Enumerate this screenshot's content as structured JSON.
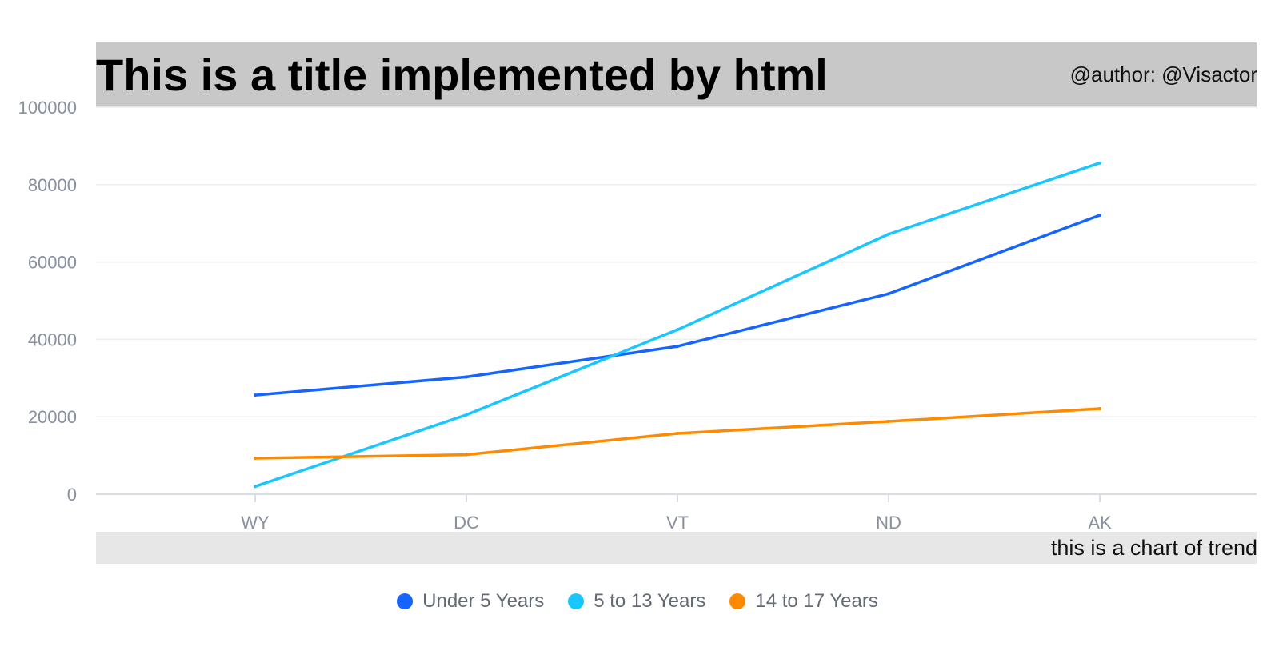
{
  "header": {
    "title": "This is a title implemented by html",
    "author": "@author: @Visactor"
  },
  "footer": {
    "caption": "this is a chart of trend"
  },
  "colors": {
    "title_band": "#c8c8c8",
    "footer_band": "#e7e7e7",
    "axis_text": "#89909d",
    "grid": "#eeeeee"
  },
  "chart_data": {
    "type": "line",
    "categories": [
      "WY",
      "DC",
      "VT",
      "ND",
      "AK"
    ],
    "series": [
      {
        "name": "Under 5 Years",
        "color": "#1664ff",
        "values": [
          25600,
          30300,
          38200,
          51800,
          72100
        ]
      },
      {
        "name": "5 to 13 Years",
        "color": "#1ac6ff",
        "values": [
          2000,
          20500,
          42500,
          67200,
          85600
        ]
      },
      {
        "name": "14 to 17 Years",
        "color": "#ff8a00",
        "values": [
          9300,
          10200,
          15700,
          18800,
          22100
        ]
      }
    ],
    "y_ticks": [
      "0",
      "20000",
      "40000",
      "60000",
      "80000",
      "100000"
    ],
    "ylim": [
      0,
      100000
    ],
    "grid": true,
    "legend_position": "bottom-center"
  }
}
